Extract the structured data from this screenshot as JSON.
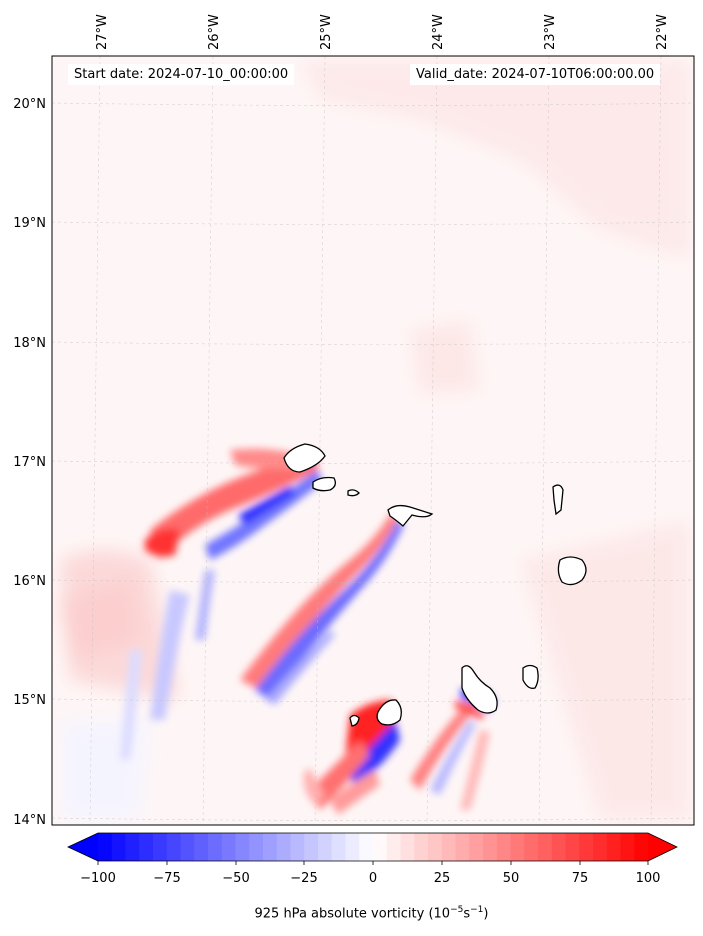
{
  "map": {
    "start_date_label": "Start date: 2024-07-10_00:00:00",
    "valid_date_label": "Valid_date: 2024-07-10T06:00:00.00",
    "longitude_labels": [
      "27°W",
      "26°W",
      "25°W",
      "24°W",
      "23°W",
      "22°W"
    ],
    "latitude_labels": [
      "20°N",
      "19°N",
      "18°N",
      "17°N",
      "16°N",
      "15°N",
      "14°N"
    ],
    "gridlines": true
  },
  "colorbar": {
    "ticks": [
      "−100",
      "−75",
      "−50",
      "−25",
      "0",
      "25",
      "50",
      "75",
      "100"
    ],
    "label_prefix": "925 hPa absolute vorticity (10",
    "label_exp1": "−5",
    "label_mid": "s",
    "label_exp2": "−1",
    "label_suffix": ")",
    "colormap": "bwr",
    "low_color": "#0000ff",
    "mid_color": "#ffffff",
    "high_color": "#ff0000"
  }
}
